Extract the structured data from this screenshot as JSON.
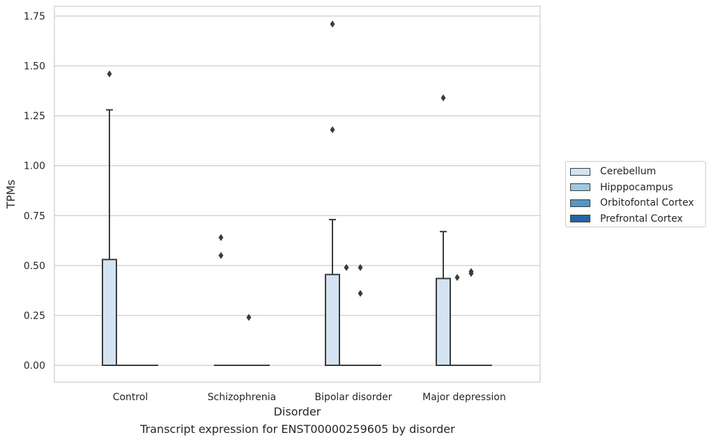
{
  "chart_data": {
    "type": "box",
    "title": "",
    "caption": "Transcript expression for ENST00000259605 by disorder",
    "xlabel": "Disorder",
    "ylabel": "TPMs",
    "ylim": [
      -0.08,
      1.8
    ],
    "yticks": [
      0.0,
      0.25,
      0.5,
      0.75,
      1.0,
      1.25,
      1.5,
      1.75
    ],
    "ytick_labels": [
      "0.00",
      "0.25",
      "0.50",
      "0.75",
      "1.00",
      "1.25",
      "1.50",
      "1.75"
    ],
    "grid": "horizontal",
    "categories": [
      "Control",
      "Schizophrenia",
      "Bipolar disorder",
      "Major depression"
    ],
    "legend_position": "right",
    "colors": {
      "Cerebellum": "#d3e3f1",
      "Hipppocampus": "#9ecae1",
      "Orbitofontal Cortex": "#5497c4",
      "Prefrontal Cortex": "#2366a8",
      "line": "#3b3b3b",
      "grid": "#cccccc"
    },
    "series": [
      {
        "name": "Cerebellum",
        "boxes": [
          {
            "q1": 0.0,
            "median": 0.0,
            "q3": 0.53,
            "whisker_low": 0.0,
            "whisker_high": 1.28,
            "outliers": [
              1.46
            ]
          },
          {
            "q1": 0.0,
            "median": 0.0,
            "q3": 0.0,
            "whisker_low": 0.0,
            "whisker_high": 0.0,
            "outliers": [
              0.55,
              0.64
            ]
          },
          {
            "q1": 0.0,
            "median": 0.0,
            "q3": 0.455,
            "whisker_low": 0.0,
            "whisker_high": 0.73,
            "outliers": [
              1.18,
              1.71
            ]
          },
          {
            "q1": 0.0,
            "median": 0.0,
            "q3": 0.435,
            "whisker_low": 0.0,
            "whisker_high": 0.67,
            "outliers": [
              1.34
            ]
          }
        ]
      },
      {
        "name": "Hipppocampus",
        "boxes": [
          {
            "q1": 0.0,
            "median": 0.0,
            "q3": 0.0,
            "whisker_low": 0.0,
            "whisker_high": 0.0,
            "outliers": []
          },
          {
            "q1": 0.0,
            "median": 0.0,
            "q3": 0.0,
            "whisker_low": 0.0,
            "whisker_high": 0.0,
            "outliers": []
          },
          {
            "q1": 0.0,
            "median": 0.0,
            "q3": 0.0,
            "whisker_low": 0.0,
            "whisker_high": 0.0,
            "outliers": [
              0.49
            ]
          },
          {
            "q1": 0.0,
            "median": 0.0,
            "q3": 0.0,
            "whisker_low": 0.0,
            "whisker_high": 0.0,
            "outliers": [
              0.44
            ]
          }
        ]
      },
      {
        "name": "Orbitofontal Cortex",
        "boxes": [
          {
            "q1": 0.0,
            "median": 0.0,
            "q3": 0.0,
            "whisker_low": 0.0,
            "whisker_high": 0.0,
            "outliers": []
          },
          {
            "q1": 0.0,
            "median": 0.0,
            "q3": 0.0,
            "whisker_low": 0.0,
            "whisker_high": 0.0,
            "outliers": [
              0.24
            ]
          },
          {
            "q1": 0.0,
            "median": 0.0,
            "q3": 0.0,
            "whisker_low": 0.0,
            "whisker_high": 0.0,
            "outliers": [
              0.36,
              0.49
            ]
          },
          {
            "q1": 0.0,
            "median": 0.0,
            "q3": 0.0,
            "whisker_low": 0.0,
            "whisker_high": 0.0,
            "outliers": [
              0.46,
              0.47
            ]
          }
        ]
      },
      {
        "name": "Prefrontal Cortex",
        "boxes": [
          {
            "q1": 0.0,
            "median": 0.0,
            "q3": 0.0,
            "whisker_low": 0.0,
            "whisker_high": 0.0,
            "outliers": []
          },
          {
            "q1": 0.0,
            "median": 0.0,
            "q3": 0.0,
            "whisker_low": 0.0,
            "whisker_high": 0.0,
            "outliers": []
          },
          {
            "q1": 0.0,
            "median": 0.0,
            "q3": 0.0,
            "whisker_low": 0.0,
            "whisker_high": 0.0,
            "outliers": []
          },
          {
            "q1": 0.0,
            "median": 0.0,
            "q3": 0.0,
            "whisker_low": 0.0,
            "whisker_high": 0.0,
            "outliers": []
          }
        ]
      }
    ]
  }
}
